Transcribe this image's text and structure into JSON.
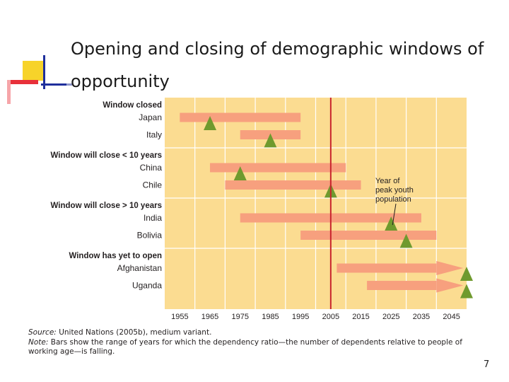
{
  "slide": {
    "title": "Opening and closing of demographic windows of opportunity",
    "page_number": "7",
    "accent_colors": {
      "yellow": "#f7d32a",
      "red": "#e8303a",
      "blue": "#1f2f9c"
    }
  },
  "chart_data": {
    "type": "bar",
    "subtype": "range-gantt",
    "title": "",
    "xlabel": "",
    "ylabel": "",
    "xlim": [
      1950,
      2050
    ],
    "x_ticks": [
      "1955",
      "1965",
      "1975",
      "1985",
      "1995",
      "2005",
      "2015",
      "2025",
      "2035",
      "2045"
    ],
    "reference_line": {
      "x": 2005,
      "color": "#c8232c"
    },
    "annotation": {
      "text": [
        "Year of",
        "peak youth",
        "population"
      ],
      "points_to_year": 2025
    },
    "groups": [
      {
        "label": "Window closed",
        "rows": [
          {
            "country": "Japan",
            "start": 1955,
            "end": 1995,
            "peak_youth_year": 1965,
            "open_ended": false
          },
          {
            "country": "Italy",
            "start": 1975,
            "end": 1995,
            "peak_youth_year": 1985,
            "open_ended": false
          }
        ]
      },
      {
        "label": "Window will close < 10 years",
        "rows": [
          {
            "country": "China",
            "start": 1965,
            "end": 2010,
            "peak_youth_year": 1975,
            "open_ended": false
          },
          {
            "country": "Chile",
            "start": 1970,
            "end": 2015,
            "peak_youth_year": 2005,
            "open_ended": false
          }
        ]
      },
      {
        "label": "Window will close > 10 years",
        "rows": [
          {
            "country": "India",
            "start": 1975,
            "end": 2035,
            "peak_youth_year": 2025,
            "open_ended": false
          },
          {
            "country": "Bolivia",
            "start": 1995,
            "end": 2040,
            "peak_youth_year": 2030,
            "open_ended": false
          }
        ]
      },
      {
        "label": "Window has yet to open",
        "rows": [
          {
            "country": "Afghanistan",
            "start": 2007,
            "end": 2040,
            "peak_youth_year": 2050,
            "open_ended": true
          },
          {
            "country": "Uganda",
            "start": 2017,
            "end": 2040,
            "peak_youth_year": 2050,
            "open_ended": true
          }
        ]
      }
    ],
    "colors": {
      "background": "#fbdc91",
      "grid": "#ffffff",
      "bar": "#f7a07e",
      "marker": "#6f9a2e"
    },
    "notes": {
      "source_label": "Source:",
      "source_text": "United Nations (2005b), medium variant.",
      "note_label": "Note:",
      "note_text": "Bars show the range of years for which the dependency ratio—the number of dependents relative to people of",
      "note_text_2": "working age—is falling."
    }
  }
}
